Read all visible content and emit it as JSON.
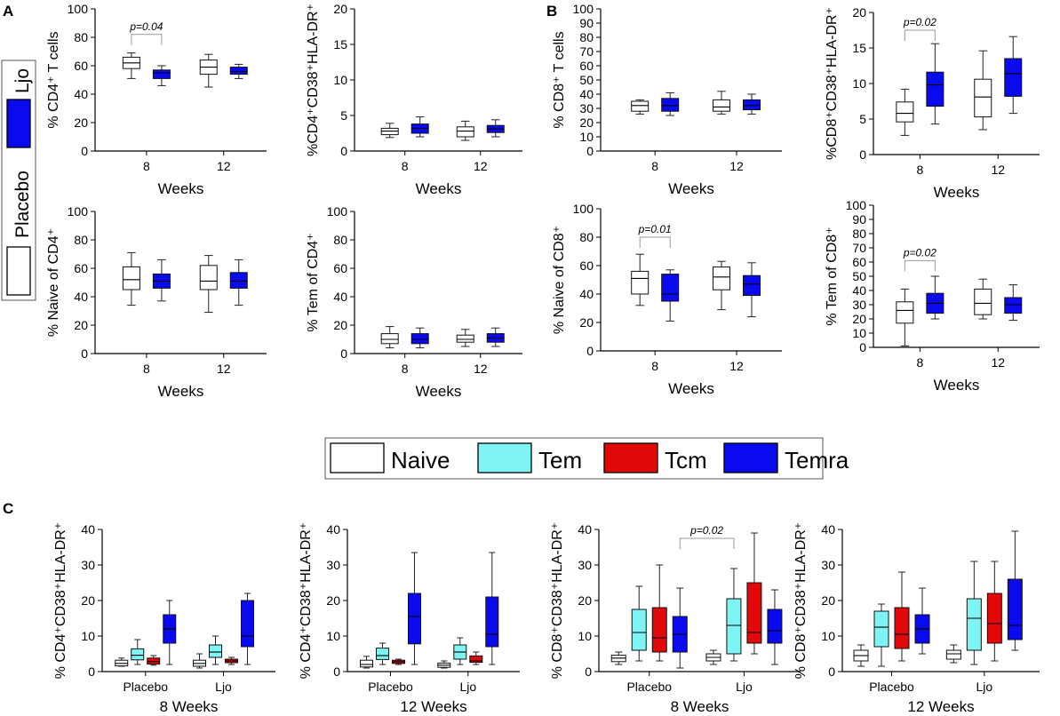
{
  "colors": {
    "placebo": "#ffffff",
    "ljo": "#0a0aee",
    "naive": "#ffffff",
    "tem": "#7ff4f4",
    "tcm": "#e00808",
    "temra": "#0a0aee"
  },
  "legendA": {
    "placebo": "Placebo",
    "ljo": "Ljo"
  },
  "legendC": [
    "Naive",
    "Tem",
    "Tcm",
    "Temra"
  ],
  "panels": {
    "A": "A",
    "B": "B",
    "C": "C"
  },
  "chart_data": [
    {
      "id": "A1",
      "type": "box",
      "ylabel": "% CD4⁺ T cells",
      "xlabel": "Weeks",
      "categories": [
        "8",
        "12"
      ],
      "yticks": [
        0,
        20,
        40,
        60,
        80,
        100
      ],
      "ylim": [
        0,
        100
      ],
      "boxes": [
        {
          "cat": "8",
          "group": "Placebo",
          "color": "placebo",
          "min": 51,
          "q1": 58,
          "median": 62,
          "q3": 66,
          "max": 69
        },
        {
          "cat": "8",
          "group": "Ljo",
          "color": "ljo",
          "min": 46,
          "q1": 51,
          "median": 55,
          "q3": 57,
          "max": 60
        },
        {
          "cat": "12",
          "group": "Placebo",
          "color": "placebo",
          "min": 45,
          "q1": 54,
          "median": 59,
          "q3": 64,
          "max": 68
        },
        {
          "cat": "12",
          "group": "Ljo",
          "color": "ljo",
          "min": 51,
          "q1": 54,
          "median": 56,
          "q3": 59,
          "max": 61
        }
      ],
      "annotation": {
        "text": "p=0.04",
        "y": 82
      }
    },
    {
      "id": "A2",
      "type": "box",
      "ylabel": "%CD4⁺CD38⁺HLA-DR⁺",
      "xlabel": "Weeks",
      "categories": [
        "8",
        "12"
      ],
      "yticks": [
        0,
        5,
        10,
        15,
        20
      ],
      "ylim": [
        0,
        20
      ],
      "boxes": [
        {
          "cat": "8",
          "group": "Placebo",
          "color": "placebo",
          "min": 1.9,
          "q1": 2.3,
          "median": 2.8,
          "q3": 3.2,
          "max": 3.9
        },
        {
          "cat": "8",
          "group": "Ljo",
          "color": "ljo",
          "min": 2,
          "q1": 2.5,
          "median": 3.2,
          "q3": 3.8,
          "max": 4.8
        },
        {
          "cat": "12",
          "group": "Placebo",
          "color": "placebo",
          "min": 1.5,
          "q1": 2.0,
          "median": 2.8,
          "q3": 3.4,
          "max": 4.2
        },
        {
          "cat": "12",
          "group": "Ljo",
          "color": "ljo",
          "min": 2,
          "q1": 2.6,
          "median": 3.1,
          "q3": 3.6,
          "max": 4.4
        }
      ]
    },
    {
      "id": "A3",
      "type": "box",
      "ylabel": "% Naive of CD4⁺",
      "xlabel": "Weeks",
      "categories": [
        "8",
        "12"
      ],
      "yticks": [
        0,
        20,
        40,
        60,
        80,
        100
      ],
      "ylim": [
        0,
        100
      ],
      "boxes": [
        {
          "cat": "8",
          "group": "Placebo",
          "color": "placebo",
          "min": 34,
          "q1": 45,
          "median": 52,
          "q3": 61,
          "max": 71
        },
        {
          "cat": "8",
          "group": "Ljo",
          "color": "ljo",
          "min": 37,
          "q1": 46,
          "median": 51,
          "q3": 56,
          "max": 66
        },
        {
          "cat": "12",
          "group": "Placebo",
          "color": "placebo",
          "min": 29,
          "q1": 45,
          "median": 51,
          "q3": 62,
          "max": 69
        },
        {
          "cat": "12",
          "group": "Ljo",
          "color": "ljo",
          "min": 34,
          "q1": 46,
          "median": 51,
          "q3": 57,
          "max": 66
        }
      ]
    },
    {
      "id": "A4",
      "type": "box",
      "ylabel": "% Tem of CD4⁺",
      "xlabel": "Weeks",
      "categories": [
        "8",
        "12"
      ],
      "yticks": [
        0,
        20,
        40,
        60,
        80,
        100
      ],
      "ylim": [
        0,
        100
      ],
      "boxes": [
        {
          "cat": "8",
          "group": "Placebo",
          "color": "placebo",
          "min": 4,
          "q1": 7,
          "median": 10,
          "q3": 14,
          "max": 19
        },
        {
          "cat": "8",
          "group": "Ljo",
          "color": "ljo",
          "min": 4,
          "q1": 7,
          "median": 10,
          "q3": 14,
          "max": 18
        },
        {
          "cat": "12",
          "group": "Placebo",
          "color": "placebo",
          "min": 5,
          "q1": 8,
          "median": 10,
          "q3": 13,
          "max": 17
        },
        {
          "cat": "12",
          "group": "Ljo",
          "color": "ljo",
          "min": 5,
          "q1": 8,
          "median": 11,
          "q3": 14,
          "max": 18
        }
      ]
    },
    {
      "id": "B1",
      "type": "box",
      "ylabel": "% CD8⁺ T cells",
      "xlabel": "Weeks",
      "categories": [
        "8",
        "12"
      ],
      "yticks": [
        0,
        10,
        20,
        30,
        40,
        50,
        60,
        70,
        80,
        90,
        100
      ],
      "ylim": [
        0,
        100
      ],
      "boxes": [
        {
          "cat": "8",
          "group": "Placebo",
          "color": "placebo",
          "min": 26,
          "q1": 28,
          "median": 32,
          "q3": 35,
          "max": 36
        },
        {
          "cat": "8",
          "group": "Ljo",
          "color": "ljo",
          "min": 25,
          "q1": 28,
          "median": 32,
          "q3": 37,
          "max": 41
        },
        {
          "cat": "12",
          "group": "Placebo",
          "color": "placebo",
          "min": 26,
          "q1": 28,
          "median": 31,
          "q3": 36,
          "max": 42
        },
        {
          "cat": "12",
          "group": "Ljo",
          "color": "ljo",
          "min": 26,
          "q1": 29,
          "median": 32,
          "q3": 36,
          "max": 40
        }
      ]
    },
    {
      "id": "B2",
      "type": "box",
      "ylabel": "%CD8⁺CD38⁺HLA-DR⁺",
      "xlabel": "Weeks",
      "categories": [
        "8",
        "12"
      ],
      "yticks": [
        0,
        5,
        10,
        15,
        20
      ],
      "ylim": [
        0,
        20
      ],
      "boxes": [
        {
          "cat": "8",
          "group": "Placebo",
          "color": "placebo",
          "min": 2.7,
          "q1": 4.6,
          "median": 5.8,
          "q3": 7.4,
          "max": 9.2
        },
        {
          "cat": "8",
          "group": "Ljo",
          "color": "ljo",
          "min": 4.3,
          "q1": 6.8,
          "median": 9.8,
          "q3": 11.6,
          "max": 15.6
        },
        {
          "cat": "12",
          "group": "Placebo",
          "color": "placebo",
          "min": 3.5,
          "q1": 5.3,
          "median": 8.1,
          "q3": 10.6,
          "max": 14.6
        },
        {
          "cat": "12",
          "group": "Ljo",
          "color": "ljo",
          "min": 5.8,
          "q1": 8.2,
          "median": 11.4,
          "q3": 13.5,
          "max": 16.6
        }
      ],
      "annotation": {
        "text": "p=0.02",
        "y": 17.5
      }
    },
    {
      "id": "B3",
      "type": "box",
      "ylabel": "% Naive of CD8⁺",
      "xlabel": "Weeks",
      "categories": [
        "8",
        "12"
      ],
      "yticks": [
        0,
        20,
        40,
        60,
        80,
        100
      ],
      "ylim": [
        0,
        100
      ],
      "boxes": [
        {
          "cat": "8",
          "group": "Placebo",
          "color": "placebo",
          "min": 32,
          "q1": 40,
          "median": 51,
          "q3": 56,
          "max": 68
        },
        {
          "cat": "8",
          "group": "Ljo",
          "color": "ljo",
          "min": 21,
          "q1": 35,
          "median": 40,
          "q3": 54,
          "max": 57
        },
        {
          "cat": "12",
          "group": "Placebo",
          "color": "placebo",
          "min": 29,
          "q1": 43,
          "median": 52,
          "q3": 59,
          "max": 63
        },
        {
          "cat": "12",
          "group": "Ljo",
          "color": "ljo",
          "min": 24,
          "q1": 39,
          "median": 47,
          "q3": 53,
          "max": 62
        }
      ],
      "annotation": {
        "text": "p=0.01",
        "y": 80
      }
    },
    {
      "id": "B4",
      "type": "box",
      "ylabel": "% Tem of CD8⁺",
      "xlabel": "Weeks",
      "categories": [
        "8",
        "12"
      ],
      "yticks": [
        0,
        10,
        20,
        30,
        40,
        50,
        60,
        70,
        80,
        90,
        100
      ],
      "ylim": [
        0,
        100
      ],
      "boxes": [
        {
          "cat": "8",
          "group": "Placebo",
          "color": "placebo",
          "min": 1,
          "q1": 17,
          "median": 26,
          "q3": 32,
          "max": 41
        },
        {
          "cat": "8",
          "group": "Ljo",
          "color": "ljo",
          "min": 20,
          "q1": 24,
          "median": 31,
          "q3": 38,
          "max": 50
        },
        {
          "cat": "12",
          "group": "Placebo",
          "color": "placebo",
          "min": 20,
          "q1": 23,
          "median": 31,
          "q3": 41,
          "max": 48
        },
        {
          "cat": "12",
          "group": "Ljo",
          "color": "ljo",
          "min": 19,
          "q1": 24,
          "median": 30,
          "q3": 35,
          "max": 44
        }
      ],
      "annotation": {
        "text": "p=0.02",
        "y": 61
      }
    },
    {
      "id": "C1",
      "type": "box",
      "ylabel": "% CD4⁺CD38⁺HLA-DR⁺",
      "xlabel": "8 Weeks",
      "categories": [
        "Placebo",
        "Ljo"
      ],
      "yticks": [
        0,
        10,
        20,
        30,
        40
      ],
      "ylim": [
        0,
        40
      ],
      "boxes": [
        {
          "cat": "Placebo",
          "group": "Naive",
          "color": "naive",
          "min": 1.5,
          "q1": 1.6,
          "median": 2.3,
          "q3": 3.2,
          "max": 3.8
        },
        {
          "cat": "Placebo",
          "group": "Tem",
          "color": "tem",
          "min": 2,
          "q1": 3.3,
          "median": 4.6,
          "q3": 6.4,
          "max": 9
        },
        {
          "cat": "Placebo",
          "group": "Tcm",
          "color": "tcm",
          "min": 1.8,
          "q1": 2.1,
          "median": 2.8,
          "q3": 3.8,
          "max": 4.5
        },
        {
          "cat": "Placebo",
          "group": "Temra",
          "color": "temra",
          "min": 2,
          "q1": 8,
          "median": 12,
          "q3": 16,
          "max": 20
        },
        {
          "cat": "Ljo",
          "group": "Naive",
          "color": "naive",
          "min": 1,
          "q1": 1.5,
          "median": 2.3,
          "q3": 3.2,
          "max": 5
        },
        {
          "cat": "Ljo",
          "group": "Tem",
          "color": "tem",
          "min": 2,
          "q1": 4,
          "median": 5.5,
          "q3": 7.5,
          "max": 10
        },
        {
          "cat": "Ljo",
          "group": "Tcm",
          "color": "tcm",
          "min": 2,
          "q1": 2.5,
          "median": 3,
          "q3": 3.5,
          "max": 4
        },
        {
          "cat": "Ljo",
          "group": "Temra",
          "color": "temra",
          "min": 2,
          "q1": 7,
          "median": 10,
          "q3": 20,
          "max": 22
        }
      ]
    },
    {
      "id": "C2",
      "type": "box",
      "ylabel": "% CD4⁺CD38⁺HLA-DR⁺",
      "xlabel": "12 Weeks",
      "categories": [
        "Placebo",
        "Ljo"
      ],
      "yticks": [
        0,
        10,
        20,
        30,
        40
      ],
      "ylim": [
        0,
        40
      ],
      "boxes": [
        {
          "cat": "Placebo",
          "group": "Naive",
          "color": "naive",
          "min": 1,
          "q1": 1.3,
          "median": 2,
          "q3": 3.2,
          "max": 4.3
        },
        {
          "cat": "Placebo",
          "group": "Tem",
          "color": "tem",
          "min": 2,
          "q1": 3.4,
          "median": 4.5,
          "q3": 6.6,
          "max": 8
        },
        {
          "cat": "Placebo",
          "group": "Tcm",
          "color": "tcm",
          "min": 2,
          "q1": 2.3,
          "median": 2.8,
          "q3": 3.2,
          "max": 3.5
        },
        {
          "cat": "Placebo",
          "group": "Temra",
          "color": "temra",
          "min": 2,
          "q1": 7.8,
          "median": 15.5,
          "q3": 22,
          "max": 33.5
        },
        {
          "cat": "Ljo",
          "group": "Naive",
          "color": "naive",
          "min": 1,
          "q1": 1.2,
          "median": 1.8,
          "q3": 2.4,
          "max": 3
        },
        {
          "cat": "Ljo",
          "group": "Tem",
          "color": "tem",
          "min": 2,
          "q1": 3.5,
          "median": 5.5,
          "q3": 7.5,
          "max": 9.5
        },
        {
          "cat": "Ljo",
          "group": "Tcm",
          "color": "tcm",
          "min": 2,
          "q1": 2.6,
          "median": 3,
          "q3": 4.4,
          "max": 5.5
        },
        {
          "cat": "Ljo",
          "group": "Temra",
          "color": "temra",
          "min": 2,
          "q1": 7,
          "median": 10.5,
          "q3": 21,
          "max": 33.5
        }
      ]
    },
    {
      "id": "C3",
      "type": "box",
      "ylabel": "% CD8⁺CD38⁺HLA-DR⁺",
      "xlabel": "8 Weeks",
      "categories": [
        "Placebo",
        "Ljo"
      ],
      "yticks": [
        0,
        10,
        20,
        30,
        40
      ],
      "ylim": [
        0,
        40
      ],
      "boxes": [
        {
          "cat": "Placebo",
          "group": "Naive",
          "color": "naive",
          "min": 2,
          "q1": 2.8,
          "median": 3.8,
          "q3": 4.6,
          "max": 5.5
        },
        {
          "cat": "Placebo",
          "group": "Tem",
          "color": "tem",
          "min": 3,
          "q1": 6,
          "median": 11,
          "q3": 17.5,
          "max": 24
        },
        {
          "cat": "Placebo",
          "group": "Tcm",
          "color": "tcm",
          "min": 3,
          "q1": 5.5,
          "median": 9.5,
          "q3": 18,
          "max": 30
        },
        {
          "cat": "Placebo",
          "group": "Temra",
          "color": "temra",
          "min": 1,
          "q1": 5.5,
          "median": 10.5,
          "q3": 15.5,
          "max": 23.5
        },
        {
          "cat": "Ljo",
          "group": "Naive",
          "color": "naive",
          "min": 2,
          "q1": 3,
          "median": 4,
          "q3": 5,
          "max": 6
        },
        {
          "cat": "Ljo",
          "group": "Tem",
          "color": "tem",
          "min": 3,
          "q1": 5,
          "median": 13,
          "q3": 20.5,
          "max": 29
        },
        {
          "cat": "Ljo",
          "group": "Tcm",
          "color": "tcm",
          "min": 5,
          "q1": 8,
          "median": 11,
          "q3": 25,
          "max": 39
        },
        {
          "cat": "Ljo",
          "group": "Temra",
          "color": "temra",
          "min": 2,
          "q1": 8,
          "median": 11.5,
          "q3": 17.5,
          "max": 23
        }
      ],
      "annotation": {
        "text": "p=0.02",
        "y": 37.5
      }
    },
    {
      "id": "C4",
      "type": "box",
      "ylabel": "% CD8⁺CD38⁺HLA-DR⁺",
      "xlabel": "12 Weeks",
      "categories": [
        "Placebo",
        "Ljo"
      ],
      "yticks": [
        0,
        10,
        20,
        30,
        40
      ],
      "ylim": [
        0,
        40
      ],
      "boxes": [
        {
          "cat": "Placebo",
          "group": "Naive",
          "color": "naive",
          "min": 1.5,
          "q1": 3,
          "median": 4.5,
          "q3": 6,
          "max": 7.5
        },
        {
          "cat": "Placebo",
          "group": "Tem",
          "color": "tem",
          "min": 1.5,
          "q1": 7,
          "median": 12.5,
          "q3": 17,
          "max": 19
        },
        {
          "cat": "Placebo",
          "group": "Tcm",
          "color": "tcm",
          "min": 3,
          "q1": 6.5,
          "median": 10.5,
          "q3": 18,
          "max": 28
        },
        {
          "cat": "Placebo",
          "group": "Temra",
          "color": "temra",
          "min": 5,
          "q1": 8,
          "median": 12,
          "q3": 16,
          "max": 23.5
        },
        {
          "cat": "Ljo",
          "group": "Naive",
          "color": "naive",
          "min": 2.5,
          "q1": 3.5,
          "median": 5,
          "q3": 6,
          "max": 7.5
        },
        {
          "cat": "Ljo",
          "group": "Tem",
          "color": "tem",
          "min": 2,
          "q1": 6,
          "median": 15,
          "q3": 20.5,
          "max": 31
        },
        {
          "cat": "Ljo",
          "group": "Tcm",
          "color": "tcm",
          "min": 3,
          "q1": 8,
          "median": 13.5,
          "q3": 22,
          "max": 31
        },
        {
          "cat": "Ljo",
          "group": "Temra",
          "color": "temra",
          "min": 6,
          "q1": 9,
          "median": 13,
          "q3": 26,
          "max": 39.5
        }
      ]
    }
  ]
}
